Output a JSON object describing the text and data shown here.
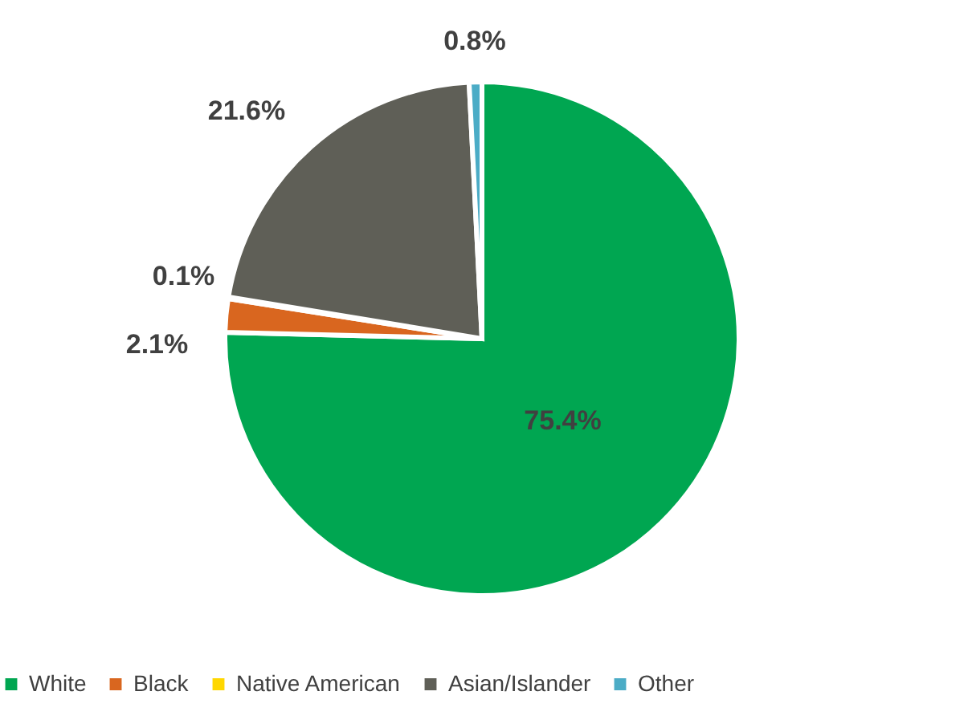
{
  "chart_data": {
    "type": "pie",
    "categories": [
      "White",
      "Black",
      "Native American",
      "Asian/Islander",
      "Other"
    ],
    "values": [
      75.4,
      2.1,
      0.1,
      21.6,
      0.8
    ],
    "colors": [
      "#00a651",
      "#d9661f",
      "#ffd700",
      "#5f5f57",
      "#4bacc6"
    ],
    "value_labels": [
      "75.4%",
      "2.1%",
      "0.1%",
      "21.6%",
      "0.8%"
    ],
    "legend": "bottom"
  }
}
